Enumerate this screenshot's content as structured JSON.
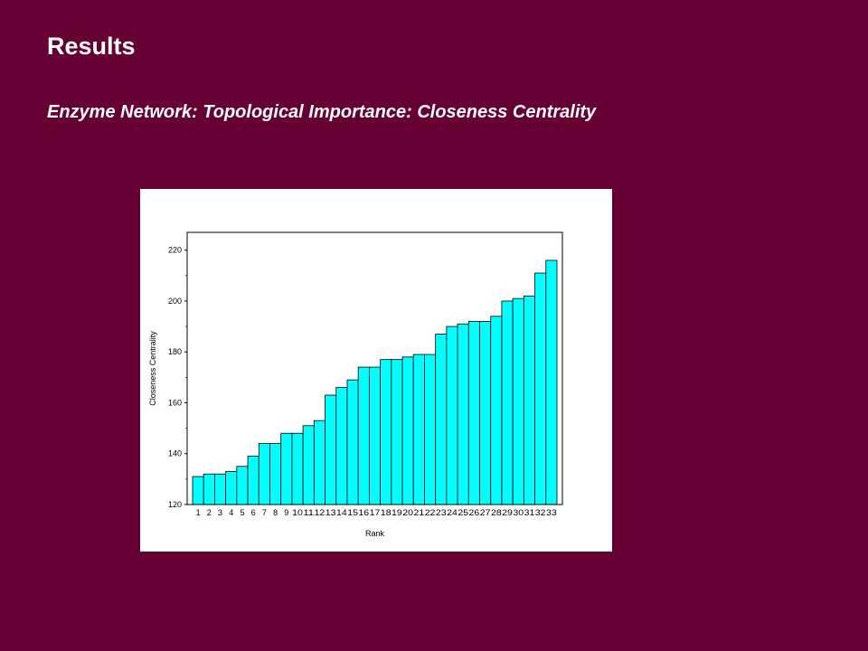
{
  "slide": {
    "title": "Results",
    "subtitle": "Enzyme Network: Topological Importance: Closeness Centrality"
  },
  "colors": {
    "background": "#660033",
    "bar_fill": "#00ffff",
    "bar_stroke": "#000000"
  },
  "chart_data": {
    "type": "bar",
    "xlabel": "Rank",
    "ylabel": "Closeness Centrality",
    "ylim": [
      120,
      227
    ],
    "yticks": [
      120,
      140,
      160,
      180,
      200,
      220
    ],
    "grid": false,
    "legend": "none",
    "categories": [
      "1",
      "2",
      "3",
      "4",
      "5",
      "6",
      "7",
      "8",
      "9",
      "10",
      "11",
      "12",
      "13",
      "14",
      "15",
      "16",
      "17",
      "18",
      "19",
      "20",
      "21",
      "22",
      "23",
      "24",
      "25",
      "26",
      "27",
      "28",
      "29",
      "30",
      "31",
      "32",
      "33"
    ],
    "values": [
      131,
      132,
      132,
      133,
      135,
      139,
      144,
      144,
      148,
      148,
      151,
      153,
      163,
      166,
      169,
      174,
      174,
      177,
      177,
      178,
      179,
      179,
      187,
      190,
      191,
      192,
      192,
      194,
      200,
      201,
      202,
      211,
      216
    ]
  }
}
